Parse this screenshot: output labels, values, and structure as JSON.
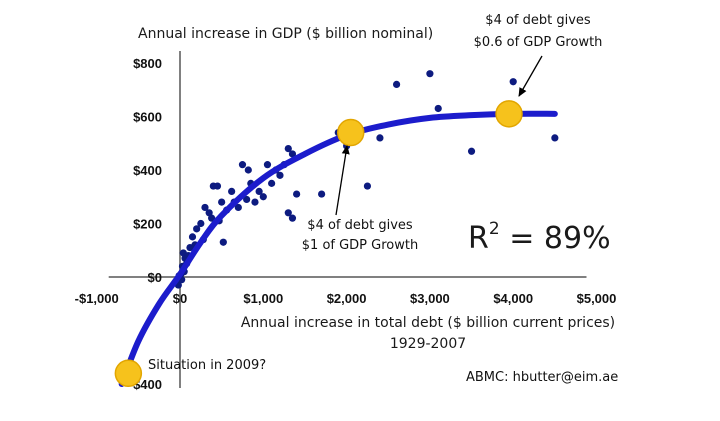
{
  "chart_data": {
    "type": "scatter",
    "title": "",
    "ylabel": "Annual increase in GDP ($ billion nominal)",
    "xlabel": "Annual increase in total debt ($ billion current prices)",
    "xlabel_sub": "1929-2007",
    "xlim": [
      -1000,
      5000
    ],
    "ylim": [
      -400,
      800
    ],
    "x_ticks": [
      {
        "value": -1000,
        "label": "-$1,000"
      },
      {
        "value": 0,
        "label": "$0"
      },
      {
        "value": 1000,
        "label": "$1,000"
      },
      {
        "value": 2000,
        "label": "$2,000"
      },
      {
        "value": 3000,
        "label": "$3,000"
      },
      {
        "value": 4000,
        "label": "$4,000"
      },
      {
        "value": 5000,
        "label": "$5,000"
      }
    ],
    "y_ticks": [
      {
        "value": 800,
        "label": "$800"
      },
      {
        "value": 600,
        "label": "$600"
      },
      {
        "value": 400,
        "label": "$400"
      },
      {
        "value": 200,
        "label": "$200"
      },
      {
        "value": 0,
        "label": "$0"
      },
      {
        "value": -400,
        "label": "-$400"
      }
    ],
    "grid": false,
    "r_squared": {
      "base": "R",
      "exp": "2",
      "rest": " = 89%"
    },
    "points": [
      {
        "x": -20,
        "y": -30
      },
      {
        "x": 10,
        "y": 10
      },
      {
        "x": 30,
        "y": 40
      },
      {
        "x": 50,
        "y": 20
      },
      {
        "x": -10,
        "y": 5
      },
      {
        "x": 20,
        "y": -10
      },
      {
        "x": 60,
        "y": 70
      },
      {
        "x": 80,
        "y": 50
      },
      {
        "x": 40,
        "y": 90
      },
      {
        "x": 100,
        "y": 80
      },
      {
        "x": 120,
        "y": 110
      },
      {
        "x": 150,
        "y": 150
      },
      {
        "x": 180,
        "y": 120
      },
      {
        "x": 200,
        "y": 180
      },
      {
        "x": 250,
        "y": 200
      },
      {
        "x": 280,
        "y": 140
      },
      {
        "x": 300,
        "y": 260
      },
      {
        "x": 350,
        "y": 240
      },
      {
        "x": 380,
        "y": 220
      },
      {
        "x": 400,
        "y": 340
      },
      {
        "x": 450,
        "y": 340
      },
      {
        "x": 470,
        "y": 210
      },
      {
        "x": 500,
        "y": 280
      },
      {
        "x": 520,
        "y": 130
      },
      {
        "x": 560,
        "y": 250
      },
      {
        "x": 620,
        "y": 320
      },
      {
        "x": 650,
        "y": 280
      },
      {
        "x": 700,
        "y": 260
      },
      {
        "x": 750,
        "y": 420
      },
      {
        "x": 800,
        "y": 290
      },
      {
        "x": 820,
        "y": 400
      },
      {
        "x": 850,
        "y": 350
      },
      {
        "x": 900,
        "y": 280
      },
      {
        "x": 950,
        "y": 320
      },
      {
        "x": 1000,
        "y": 300
      },
      {
        "x": 1050,
        "y": 420
      },
      {
        "x": 1100,
        "y": 350
      },
      {
        "x": 1150,
        "y": 400
      },
      {
        "x": 1200,
        "y": 380
      },
      {
        "x": 1250,
        "y": 420
      },
      {
        "x": 1300,
        "y": 480
      },
      {
        "x": 1350,
        "y": 460
      },
      {
        "x": 1300,
        "y": 240
      },
      {
        "x": 1350,
        "y": 220
      },
      {
        "x": 1400,
        "y": 310
      },
      {
        "x": 1700,
        "y": 310
      },
      {
        "x": 1900,
        "y": 540
      },
      {
        "x": 2000,
        "y": 490
      },
      {
        "x": 2250,
        "y": 340
      },
      {
        "x": 2400,
        "y": 520
      },
      {
        "x": 2600,
        "y": 720
      },
      {
        "x": 3000,
        "y": 760
      },
      {
        "x": 3100,
        "y": 630
      },
      {
        "x": 3500,
        "y": 470
      },
      {
        "x": 4000,
        "y": 730
      },
      {
        "x": 4500,
        "y": 520
      }
    ],
    "fit_curve": [
      {
        "x": -700,
        "y": -400
      },
      {
        "x": -500,
        "y": -240
      },
      {
        "x": -250,
        "y": -100
      },
      {
        "x": 0,
        "y": 10
      },
      {
        "x": 250,
        "y": 130
      },
      {
        "x": 500,
        "y": 230
      },
      {
        "x": 1000,
        "y": 370
      },
      {
        "x": 1500,
        "y": 460
      },
      {
        "x": 2000,
        "y": 530
      },
      {
        "x": 2500,
        "y": 570
      },
      {
        "x": 3000,
        "y": 595
      },
      {
        "x": 3500,
        "y": 605
      },
      {
        "x": 4000,
        "y": 610
      },
      {
        "x": 4500,
        "y": 610
      }
    ],
    "highlights": [
      {
        "x": -620,
        "y": -360
      },
      {
        "x": 2050,
        "y": 540
      },
      {
        "x": 3950,
        "y": 610
      }
    ],
    "annotations": {
      "top_right": [
        "$4 of debt gives",
        "$0.6 of GDP Growth"
      ],
      "middle": [
        "$4 of debt gives",
        "$1 of GDP Growth"
      ],
      "bottom_left": "Situation in 2009?",
      "credit": "ABMC: hbutter@eim.ae"
    },
    "colors": {
      "curve": "#1c1ccc",
      "points": "#0d1b80",
      "highlight": "#f6c21c",
      "highlight_edge": "#e2a600",
      "axis": "#808080"
    }
  }
}
